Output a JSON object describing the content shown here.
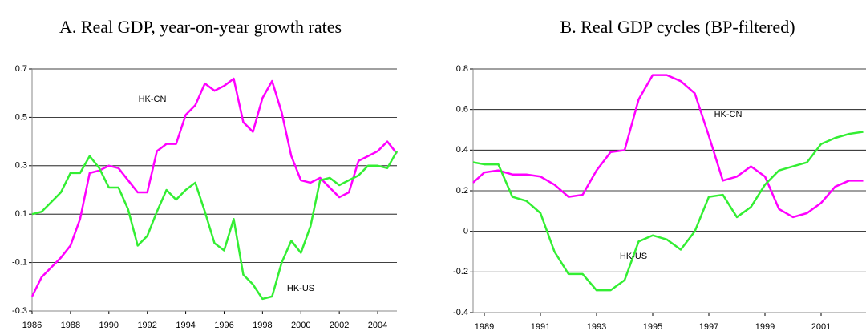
{
  "chart_data": [
    {
      "type": "line",
      "title": "A. Real GDP, year-on-year growth rates",
      "x": [
        1986,
        1986.5,
        1987,
        1987.5,
        1988,
        1988.5,
        1989,
        1989.5,
        1990,
        1990.5,
        1991,
        1991.5,
        1992,
        1992.5,
        1993,
        1993.5,
        1994,
        1994.5,
        1995,
        1995.5,
        1996,
        1996.5,
        1997,
        1997.5,
        1998,
        1998.5,
        1999,
        1999.5,
        2000,
        2000.5,
        2001,
        2001.5,
        2002,
        2002.5,
        2003,
        2003.5,
        2004,
        2004.5,
        2005
      ],
      "series": [
        {
          "name": "HK-CN",
          "color": "#ff00ff",
          "values": [
            -0.24,
            -0.16,
            -0.12,
            -0.08,
            -0.03,
            0.08,
            0.27,
            0.28,
            0.3,
            0.29,
            0.24,
            0.19,
            0.19,
            0.36,
            0.39,
            0.39,
            0.51,
            0.55,
            0.64,
            0.61,
            0.63,
            0.66,
            0.48,
            0.44,
            0.58,
            0.65,
            0.52,
            0.34,
            0.24,
            0.23,
            0.25,
            0.21,
            0.17,
            0.19,
            0.32,
            0.34,
            0.36,
            0.4,
            0.35
          ]
        },
        {
          "name": "HK-US",
          "color": "#33ee33",
          "values": [
            0.1,
            0.11,
            0.15,
            0.19,
            0.27,
            0.27,
            0.34,
            0.29,
            0.21,
            0.21,
            0.12,
            -0.03,
            0.01,
            0.11,
            0.2,
            0.16,
            0.2,
            0.23,
            0.11,
            -0.02,
            -0.05,
            0.08,
            -0.15,
            -0.19,
            -0.25,
            -0.24,
            -0.1,
            -0.01,
            -0.06,
            0.05,
            0.24,
            0.25,
            0.22,
            0.24,
            0.26,
            0.3,
            0.3,
            0.29,
            0.36
          ]
        }
      ],
      "xlim": [
        1986,
        2005
      ],
      "xticks": [
        1986,
        1988,
        1990,
        1992,
        1994,
        1996,
        1998,
        2000,
        2002,
        2004
      ],
      "ylim": [
        -0.3,
        0.7
      ],
      "yticks": [
        -0.3,
        -0.1,
        0.1,
        0.3,
        0.5,
        0.7
      ],
      "grid": true
    },
    {
      "type": "line",
      "title": "B. Real GDP cycles (BP-filtered)",
      "x": [
        1988.6,
        1989,
        1989.5,
        1990,
        1990.5,
        1991,
        1991.5,
        1992,
        1992.5,
        1993,
        1993.5,
        1994,
        1994.5,
        1995,
        1995.5,
        1996,
        1996.5,
        1997,
        1997.5,
        1998,
        1998.5,
        1999,
        1999.5,
        2000,
        2000.5,
        2001,
        2001.5,
        2002,
        2002.5
      ],
      "series": [
        {
          "name": "HK-CN",
          "color": "#ff00ff",
          "values": [
            0.24,
            0.29,
            0.3,
            0.28,
            0.28,
            0.27,
            0.23,
            0.17,
            0.18,
            0.3,
            0.39,
            0.4,
            0.65,
            0.77,
            0.77,
            0.74,
            0.68,
            0.47,
            0.25,
            0.27,
            0.32,
            0.27,
            0.11,
            0.07,
            0.09,
            0.14,
            0.22,
            0.25,
            0.25
          ]
        },
        {
          "name": "HK-US",
          "color": "#33ee33",
          "values": [
            0.34,
            0.33,
            0.33,
            0.17,
            0.15,
            0.09,
            -0.1,
            -0.21,
            -0.21,
            -0.29,
            -0.29,
            -0.24,
            -0.05,
            -0.02,
            -0.04,
            -0.09,
            0.0,
            0.17,
            0.18,
            0.07,
            0.12,
            0.23,
            0.3,
            0.32,
            0.34,
            0.43,
            0.46,
            0.48,
            0.49
          ]
        }
      ],
      "xlim": [
        1988.6,
        2002.6
      ],
      "xticks": [
        1989,
        1991,
        1993,
        1995,
        1997,
        1999,
        2001
      ],
      "ylim": [
        -0.4,
        0.8
      ],
      "yticks": [
        -0.4,
        -0.2,
        0,
        0.2,
        0.4,
        0.6,
        0.8
      ],
      "grid": true
    }
  ]
}
